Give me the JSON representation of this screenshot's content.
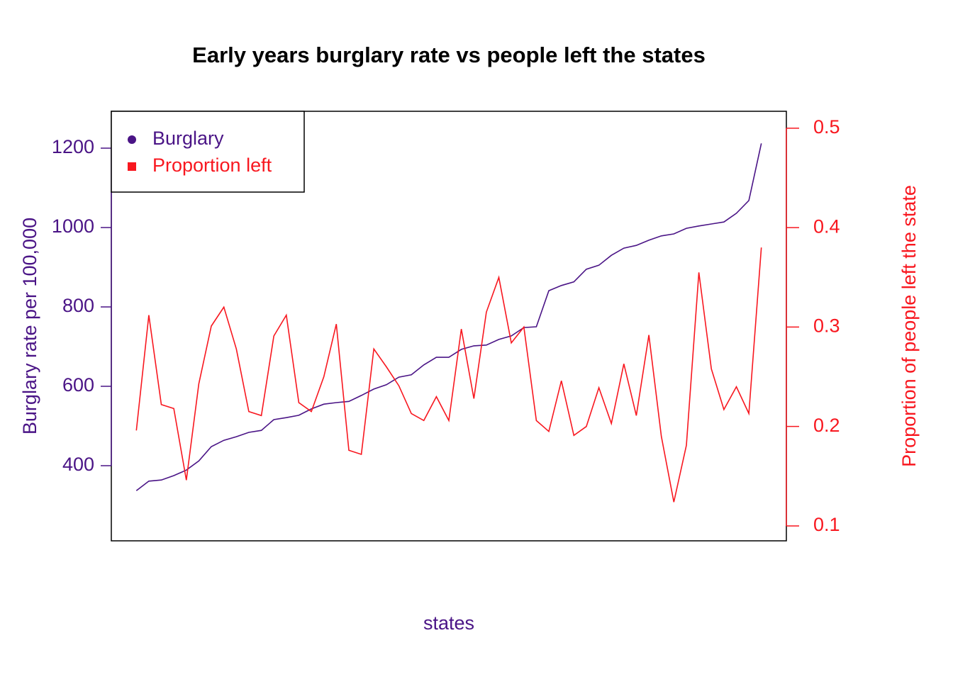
{
  "chart_data": {
    "type": "line",
    "title": "Early years burglary rate vs people left the states",
    "xlabel": "states",
    "ylabel": "Burglary rate per 100,000",
    "y2label": "Proportion of people left the state",
    "categories": [
      null,
      null,
      null,
      null,
      null,
      null,
      null,
      null,
      null,
      null,
      null,
      null,
      null,
      null,
      null,
      null,
      null,
      null,
      null,
      null,
      null,
      null,
      null,
      null,
      null,
      null,
      null,
      null,
      null,
      null,
      null,
      null,
      null,
      null,
      null,
      null,
      null,
      null,
      null,
      null,
      null,
      null,
      null,
      null,
      null,
      null,
      null,
      null,
      null,
      null,
      null
    ],
    "series": [
      {
        "name": "Burglary",
        "color": "#4a1486",
        "marker": "circle",
        "values": [
          337,
          361,
          364,
          375,
          389,
          412,
          448,
          464,
          473,
          484,
          489,
          516,
          521,
          527,
          543,
          555,
          559,
          562,
          577,
          593,
          604,
          623,
          629,
          654,
          673,
          673,
          693,
          702,
          704,
          718,
          727,
          748,
          750,
          841,
          854,
          863,
          895,
          905,
          930,
          948,
          955,
          968,
          979,
          984,
          998,
          1004,
          1009,
          1014,
          1036,
          1068,
          1212
        ]
      },
      {
        "name": "Proportion left",
        "color": "#f8171f",
        "marker": "square",
        "axis": "y2",
        "values": [
          0.196,
          0.312,
          0.222,
          0.218,
          0.146,
          0.243,
          0.301,
          0.32,
          0.278,
          0.215,
          0.211,
          0.291,
          0.312,
          0.224,
          0.215,
          0.25,
          0.303,
          0.176,
          0.172,
          0.278,
          0.26,
          0.241,
          0.213,
          0.206,
          0.23,
          0.206,
          0.298,
          0.228,
          0.315,
          0.35,
          0.284,
          0.3,
          0.206,
          0.195,
          0.246,
          0.191,
          0.2,
          0.239,
          0.203,
          0.263,
          0.211,
          0.292,
          0.19,
          0.124,
          0.181,
          0.355,
          0.258,
          0.217,
          0.24,
          0.213,
          0.38
        ]
      }
    ],
    "ylim": [
      210.7,
      1292.9
    ],
    "yticks": [
      400,
      600,
      800,
      1000,
      1200
    ],
    "y2lim": [
      0.085,
      0.517
    ],
    "y2ticks": [
      0.1,
      0.2,
      0.3,
      0.4,
      0.5
    ],
    "legend": "top-left"
  }
}
